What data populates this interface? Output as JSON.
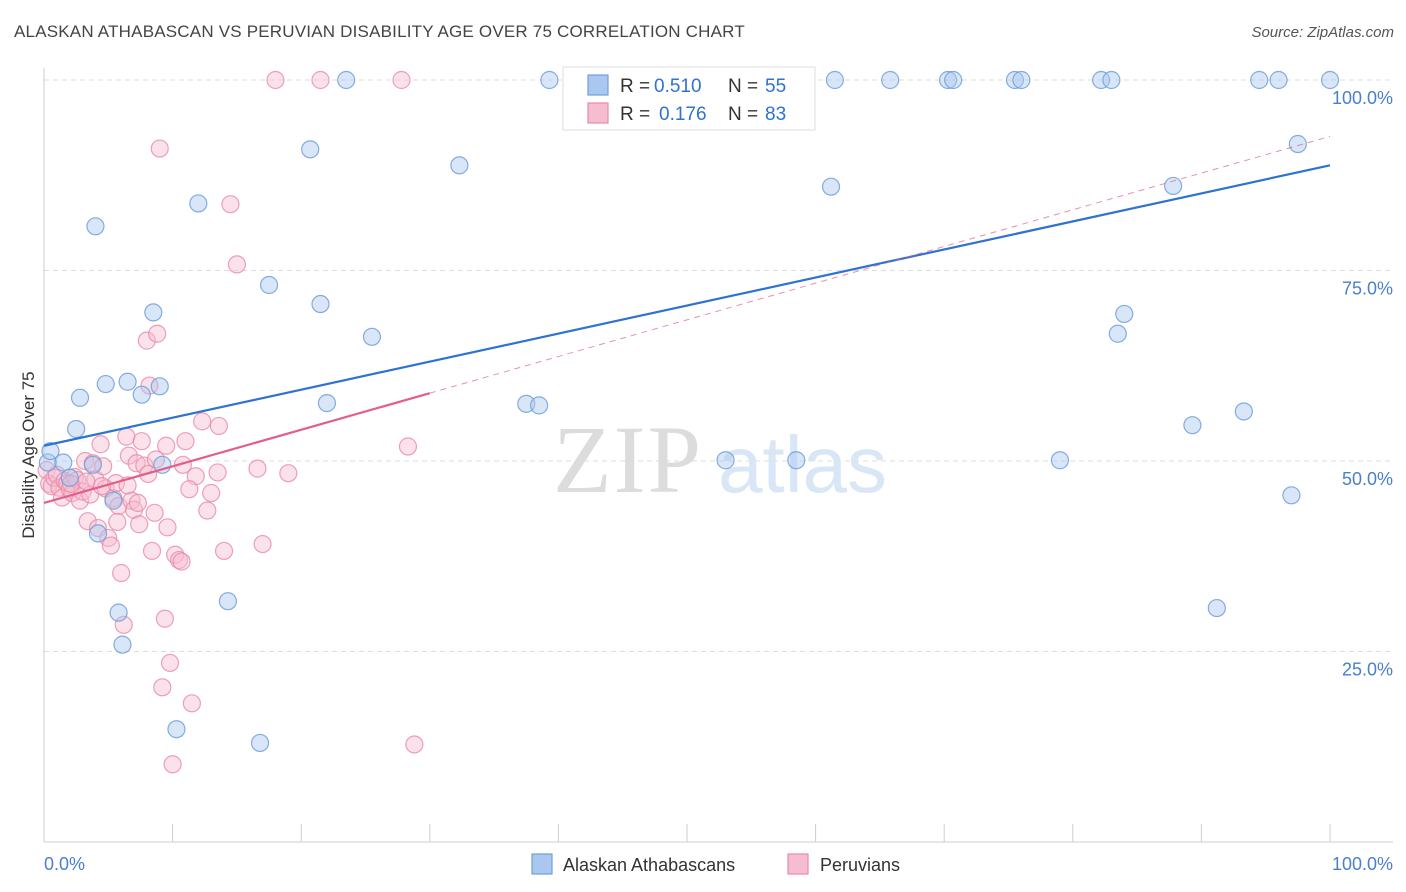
{
  "title": "ALASKAN ATHABASCAN VS PERUVIAN DISABILITY AGE OVER 75 CORRELATION CHART",
  "source": "Source: ZipAtlas.com",
  "watermark": {
    "zip": "ZIP",
    "atlas": "atlas"
  },
  "colors": {
    "blue": "#6f9fdc",
    "blue_fill": "#aac8ef",
    "blue_line": "#2e72d2",
    "pink": "#e98aa6",
    "pink_fill": "#f6bdd0",
    "pink_line": "#e0608a",
    "tick": "#4a7fcc",
    "grid": "#dddddd"
  },
  "stats": [
    {
      "r_label": "R =",
      "r": "0.510",
      "n_label": "N =",
      "n": "55"
    },
    {
      "r_label": "R =",
      "r": "0.176",
      "n_label": "N =",
      "n": "83"
    }
  ],
  "chart_data": {
    "type": "scatter",
    "title": "ALASKAN ATHABASCAN VS PERUVIAN DISABILITY AGE OVER 75 CORRELATION CHART",
    "xlabel": "",
    "ylabel": "Disability Age Over 75",
    "xlim": [
      0,
      100
    ],
    "ylim": [
      0,
      100
    ],
    "x_ticks": [
      "0.0%",
      "100.0%"
    ],
    "y_ticks": [
      {
        "value": 25,
        "label": "25.0%"
      },
      {
        "value": 50,
        "label": "50.0%"
      },
      {
        "value": 75,
        "label": "75.0%"
      },
      {
        "value": 100,
        "label": "100.0%"
      }
    ],
    "grid": true,
    "legend_position": "bottom",
    "series": [
      {
        "name": "Alaskan Athabascans",
        "color": "#6f9fdc",
        "trend": {
          "x": [
            0,
            100
          ],
          "y": [
            52.0,
            88.8
          ],
          "style": "solid"
        },
        "points": [
          [
            0.3,
            49.8
          ],
          [
            0.5,
            51.3
          ],
          [
            1.5,
            49.8
          ],
          [
            2.0,
            47.8
          ],
          [
            2.5,
            54.2
          ],
          [
            2.8,
            58.3
          ],
          [
            3.8,
            49.5
          ],
          [
            4.0,
            80.8
          ],
          [
            4.2,
            40.5
          ],
          [
            4.8,
            60.1
          ],
          [
            5.4,
            44.8
          ],
          [
            5.8,
            30.1
          ],
          [
            6.1,
            25.9
          ],
          [
            6.5,
            60.4
          ],
          [
            7.6,
            58.7
          ],
          [
            8.5,
            69.5
          ],
          [
            9.0,
            59.8
          ],
          [
            9.2,
            49.5
          ],
          [
            10.3,
            14.8
          ],
          [
            12.0,
            83.8
          ],
          [
            14.3,
            31.6
          ],
          [
            16.8,
            13.0
          ],
          [
            17.5,
            73.1
          ],
          [
            20.7,
            90.9
          ],
          [
            21.5,
            70.6
          ],
          [
            22.0,
            57.6
          ],
          [
            23.5,
            100.0
          ],
          [
            25.5,
            66.3
          ],
          [
            32.3,
            88.8
          ],
          [
            37.5,
            57.5
          ],
          [
            38.5,
            57.3
          ],
          [
            39.3,
            100.0
          ],
          [
            53.0,
            50.1
          ],
          [
            58.5,
            50.1
          ],
          [
            61.2,
            86.0
          ],
          [
            61.5,
            100.0
          ],
          [
            65.8,
            100.0
          ],
          [
            70.3,
            100.0
          ],
          [
            70.7,
            100.0
          ],
          [
            75.5,
            100.0
          ],
          [
            76.0,
            100.0
          ],
          [
            79.0,
            50.1
          ],
          [
            82.2,
            100.0
          ],
          [
            83.0,
            100.0
          ],
          [
            83.5,
            66.7
          ],
          [
            84.0,
            69.3
          ],
          [
            87.8,
            86.1
          ],
          [
            89.3,
            54.7
          ],
          [
            91.2,
            30.7
          ],
          [
            93.3,
            56.5
          ],
          [
            94.5,
            100.0
          ],
          [
            96.0,
            100.0
          ],
          [
            97.0,
            45.5
          ],
          [
            97.5,
            91.6
          ],
          [
            100.0,
            100.0
          ]
        ]
      },
      {
        "name": "Peruvians",
        "color": "#e98aa6",
        "trend": {
          "x": [
            0,
            30
          ],
          "y": [
            44.5,
            58.9
          ],
          "style": "solid",
          "dashed_extension": {
            "x": [
              30,
              100
            ],
            "y": [
              58.9,
              92.6
            ]
          }
        },
        "points": [
          [
            0.2,
            48.8
          ],
          [
            0.4,
            47.0
          ],
          [
            0.6,
            46.7
          ],
          [
            0.8,
            47.8
          ],
          [
            1.0,
            48.2
          ],
          [
            1.2,
            46.5
          ],
          [
            1.4,
            45.2
          ],
          [
            1.6,
            47.4
          ],
          [
            1.8,
            47.1
          ],
          [
            2.0,
            46.3
          ],
          [
            2.2,
            45.8
          ],
          [
            2.4,
            47.9
          ],
          [
            2.6,
            47.5
          ],
          [
            2.8,
            44.8
          ],
          [
            3.0,
            46.0
          ],
          [
            3.2,
            50.0
          ],
          [
            3.4,
            42.1
          ],
          [
            3.6,
            45.6
          ],
          [
            3.8,
            49.7
          ],
          [
            4.0,
            47.6
          ],
          [
            4.2,
            41.2
          ],
          [
            4.4,
            52.2
          ],
          [
            4.6,
            49.3
          ],
          [
            4.8,
            46.4
          ],
          [
            5.0,
            39.9
          ],
          [
            5.2,
            38.9
          ],
          [
            5.4,
            45.1
          ],
          [
            5.6,
            47.1
          ],
          [
            5.8,
            44.1
          ],
          [
            6.0,
            35.3
          ],
          [
            6.2,
            28.5
          ],
          [
            6.4,
            53.2
          ],
          [
            6.6,
            50.7
          ],
          [
            6.8,
            44.8
          ],
          [
            7.0,
            43.6
          ],
          [
            7.2,
            49.7
          ],
          [
            7.4,
            41.7
          ],
          [
            7.6,
            52.6
          ],
          [
            7.8,
            49.4
          ],
          [
            8.0,
            65.8
          ],
          [
            8.2,
            59.9
          ],
          [
            8.4,
            38.2
          ],
          [
            8.6,
            43.2
          ],
          [
            8.8,
            66.7
          ],
          [
            9.0,
            91.0
          ],
          [
            9.2,
            20.3
          ],
          [
            9.4,
            29.3
          ],
          [
            9.6,
            41.3
          ],
          [
            9.8,
            23.5
          ],
          [
            10.0,
            10.2
          ],
          [
            10.2,
            37.7
          ],
          [
            10.5,
            37.0
          ],
          [
            10.8,
            49.5
          ],
          [
            11.0,
            52.6
          ],
          [
            11.5,
            18.2
          ],
          [
            11.8,
            48.0
          ],
          [
            12.3,
            55.2
          ],
          [
            13.0,
            45.8
          ],
          [
            13.5,
            48.5
          ],
          [
            14.0,
            38.2
          ],
          [
            14.5,
            83.7
          ],
          [
            15.0,
            75.8
          ],
          [
            17.0,
            39.1
          ],
          [
            18.0,
            100.0
          ],
          [
            19.0,
            48.4
          ],
          [
            21.5,
            100.0
          ],
          [
            27.8,
            100.0
          ],
          [
            28.3,
            51.9
          ],
          [
            28.8,
            12.8
          ],
          [
            2.1,
            47.0
          ],
          [
            3.3,
            47.3
          ],
          [
            4.5,
            46.7
          ],
          [
            5.7,
            42.0
          ],
          [
            6.5,
            46.8
          ],
          [
            7.3,
            44.5
          ],
          [
            8.1,
            48.3
          ],
          [
            8.7,
            50.2
          ],
          [
            9.5,
            52.0
          ],
          [
            10.7,
            36.8
          ],
          [
            11.3,
            46.3
          ],
          [
            12.7,
            43.5
          ],
          [
            13.6,
            54.6
          ],
          [
            16.6,
            49.0
          ]
        ]
      }
    ]
  }
}
